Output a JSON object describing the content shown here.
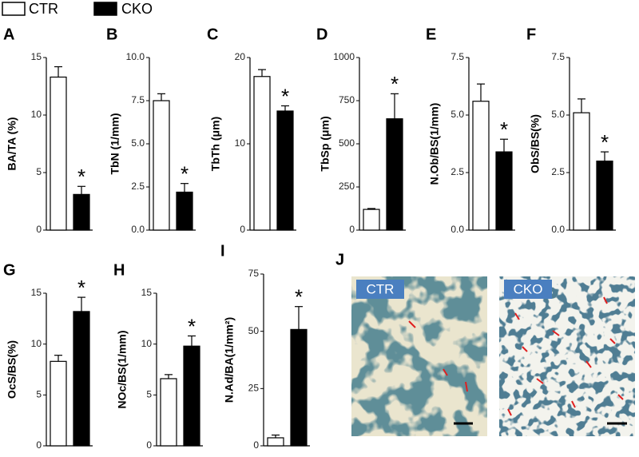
{
  "legend": [
    {
      "label": "CTR",
      "color": "#ffffff"
    },
    {
      "label": "CKO",
      "color": "#000000"
    }
  ],
  "chart_data": [
    {
      "type": "bar",
      "panel": "A",
      "ylabel": "BA/TA (%)",
      "values": [
        13.3,
        3.1
      ],
      "errors": [
        0.9,
        0.7
      ],
      "annotation": "*",
      "ylim": [
        0,
        15
      ],
      "yticks": [
        0,
        5,
        10,
        15
      ]
    },
    {
      "type": "bar",
      "panel": "B",
      "ylabel": "TbN (1/mm)",
      "values": [
        7.5,
        2.2
      ],
      "errors": [
        0.4,
        0.5
      ],
      "annotation": "*",
      "ylim": [
        0,
        10
      ],
      "yticks": [
        {
          "value": 0,
          "label": "0.0"
        },
        {
          "value": 2.5,
          "label": "2.5"
        },
        {
          "value": 5,
          "label": "5.0"
        },
        {
          "value": 7.5,
          "label": "7.5"
        },
        {
          "value": 10,
          "label": "10.0"
        }
      ]
    },
    {
      "type": "bar",
      "panel": "C",
      "ylabel": "TbTh (μm)",
      "values": [
        17.8,
        13.8
      ],
      "errors": [
        0.8,
        0.6
      ],
      "annotation": "*",
      "ylim": [
        0,
        20
      ],
      "yticks": [
        0,
        10,
        20
      ]
    },
    {
      "type": "bar",
      "panel": "D",
      "ylabel": "TbSp (μm)",
      "values": [
        120,
        645
      ],
      "errors": [
        5,
        145
      ],
      "annotation": "*",
      "ylim": [
        0,
        1000
      ],
      "yticks": [
        0,
        250,
        500,
        750,
        1000
      ]
    },
    {
      "type": "bar",
      "panel": "E",
      "ylabel": "N.Ob/BS(1/mm)",
      "values": [
        5.6,
        3.4
      ],
      "errors": [
        0.75,
        0.55
      ],
      "annotation": "*",
      "ylim": [
        0,
        7.5
      ],
      "yticks": [
        {
          "value": 0,
          "label": "0.0"
        },
        {
          "value": 2.5,
          "label": "2.5"
        },
        {
          "value": 5,
          "label": "5.0"
        },
        {
          "value": 7.5,
          "label": "7.5"
        }
      ]
    },
    {
      "type": "bar",
      "panel": "F",
      "ylabel": "ObS/BS(%)",
      "values": [
        5.1,
        3.0
      ],
      "errors": [
        0.6,
        0.4
      ],
      "annotation": "*",
      "ylim": [
        0,
        7.5
      ],
      "yticks": [
        {
          "value": 0,
          "label": "0.0"
        },
        {
          "value": 2.5,
          "label": "2.5"
        },
        {
          "value": 5,
          "label": "5.0"
        },
        {
          "value": 7.5,
          "label": "7.5"
        }
      ]
    },
    {
      "type": "bar",
      "panel": "G",
      "ylabel": "OcS/BS(%)",
      "values": [
        8.3,
        13.2
      ],
      "errors": [
        0.6,
        1.4
      ],
      "annotation": "*",
      "ylim": [
        0,
        15
      ],
      "yticks": [
        0,
        5,
        10,
        15
      ]
    },
    {
      "type": "bar",
      "panel": "H",
      "ylabel": "NOc/BS(1/mm)",
      "values": [
        6.6,
        9.8
      ],
      "errors": [
        0.4,
        1.0
      ],
      "annotation": "*",
      "ylim": [
        0,
        15
      ],
      "yticks": [
        0,
        5,
        10,
        15
      ]
    },
    {
      "type": "bar",
      "panel": "I",
      "ylabel": "N.Ad/BA(1/mm²)",
      "values": [
        3.5,
        50.8
      ],
      "errors": [
        1.2,
        10
      ],
      "annotation": "*",
      "ylim": [
        0,
        75
      ],
      "yticks": [
        0,
        25,
        50,
        75
      ]
    }
  ],
  "panel_j": {
    "panel": "J",
    "images": [
      {
        "label": "CTR"
      },
      {
        "label": "CKO"
      }
    ]
  }
}
